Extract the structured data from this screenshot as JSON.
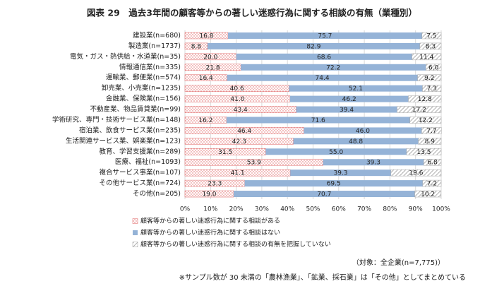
{
  "chart_data": {
    "type": "stacked_barh",
    "title": "図表 29　過去3年間の顧客等からの著しい迷惑行為に関する相談の有無（業種別）",
    "categories": [
      "建設業(n=680)",
      "製造業(n=1737)",
      "電気・ガス・熱供給・水道業(n=35)",
      "情報通信業(n=335)",
      "運輸業、郵便業(n=574)",
      "卸売業、小売業(n=1235)",
      "金融業、保険業(n=156)",
      "不動産業、物品賃貸業(n=99)",
      "学術研究、専門・技術サービス業(n=148)",
      "宿泊業、飲食サービス業(n=235)",
      "生活関連サービス業、娯楽業(n=123)",
      "教育、学習支援業(n=289)",
      "医療、福祉(n=1093)",
      "複合サービス事業(n=107)",
      "その他サービス業(n=724)",
      "その他(n=205)"
    ],
    "series": [
      {
        "name": "顧客等からの著しい迷惑行為に関する相談がある",
        "color": "#e06666",
        "pattern": "dots",
        "values": [
          16.8,
          8.8,
          20.0,
          21.8,
          16.4,
          40.6,
          41.0,
          43.4,
          16.2,
          46.4,
          42.3,
          31.5,
          53.9,
          41.1,
          23.3,
          19.0
        ],
        "value_labels": [
          "16.8",
          "8.8",
          "20.0",
          "21.8",
          "16.4",
          "40.6",
          "41.0",
          "43.4",
          "16.2",
          "46.4",
          "42.3",
          "31.5",
          "53.9",
          "41.1",
          "23.3",
          "19.0"
        ]
      },
      {
        "name": "顧客等からの著しい迷惑行為に関する相談はない",
        "color": "#95b3d7",
        "pattern": "solid",
        "values": [
          75.7,
          82.9,
          68.6,
          72.2,
          74.4,
          52.1,
          46.2,
          39.4,
          71.6,
          46.0,
          48.8,
          55.0,
          39.3,
          39.3,
          69.5,
          70.7
        ],
        "value_labels": [
          "75.7",
          "82.9",
          "68.6",
          "72.2",
          "74.4",
          "52.1",
          "46.2",
          "39.4",
          "71.6",
          "46.0",
          "48.8",
          "55.0",
          "39.3",
          "39.3",
          "69.5",
          "70.7"
        ]
      },
      {
        "name": "顧客等からの著しい迷惑行為に関する相談の有無を把握していない",
        "color": "#a6a6a6",
        "pattern": "hatch",
        "values": [
          7.5,
          8.3,
          11.4,
          6.0,
          9.2,
          7.3,
          12.8,
          17.2,
          12.2,
          7.7,
          8.9,
          13.5,
          6.8,
          19.6,
          7.2,
          10.2
        ],
        "value_labels": [
          "7.5",
          "8.3",
          "11.4",
          "6.0",
          "9.2",
          "7.3",
          "12.8",
          "17.2",
          "12.2",
          "7.7",
          "8.9",
          "13.5",
          "6.8",
          "19.6",
          "7.2",
          "10.2"
        ]
      }
    ],
    "xlim": [
      0,
      100
    ],
    "xticks": [
      {
        "value": 0,
        "label": "0%"
      },
      {
        "value": 10,
        "label": "10%"
      },
      {
        "value": 20,
        "label": "20%"
      },
      {
        "value": 30,
        "label": "30%"
      },
      {
        "value": 40,
        "label": "40%"
      },
      {
        "value": 50,
        "label": "50%"
      },
      {
        "value": 60,
        "label": "60%"
      },
      {
        "value": 70,
        "label": "70%"
      },
      {
        "value": 80,
        "label": "80%"
      },
      {
        "value": 90,
        "label": "90%"
      },
      {
        "value": 100,
        "label": "100%"
      }
    ],
    "grid": true,
    "notes": [
      "（対象：全企業(n=7,775)）",
      "※サンプル数が 30 未満の「農林漁業」、「鉱業、採石業」は「その他」としてまとめている"
    ]
  }
}
